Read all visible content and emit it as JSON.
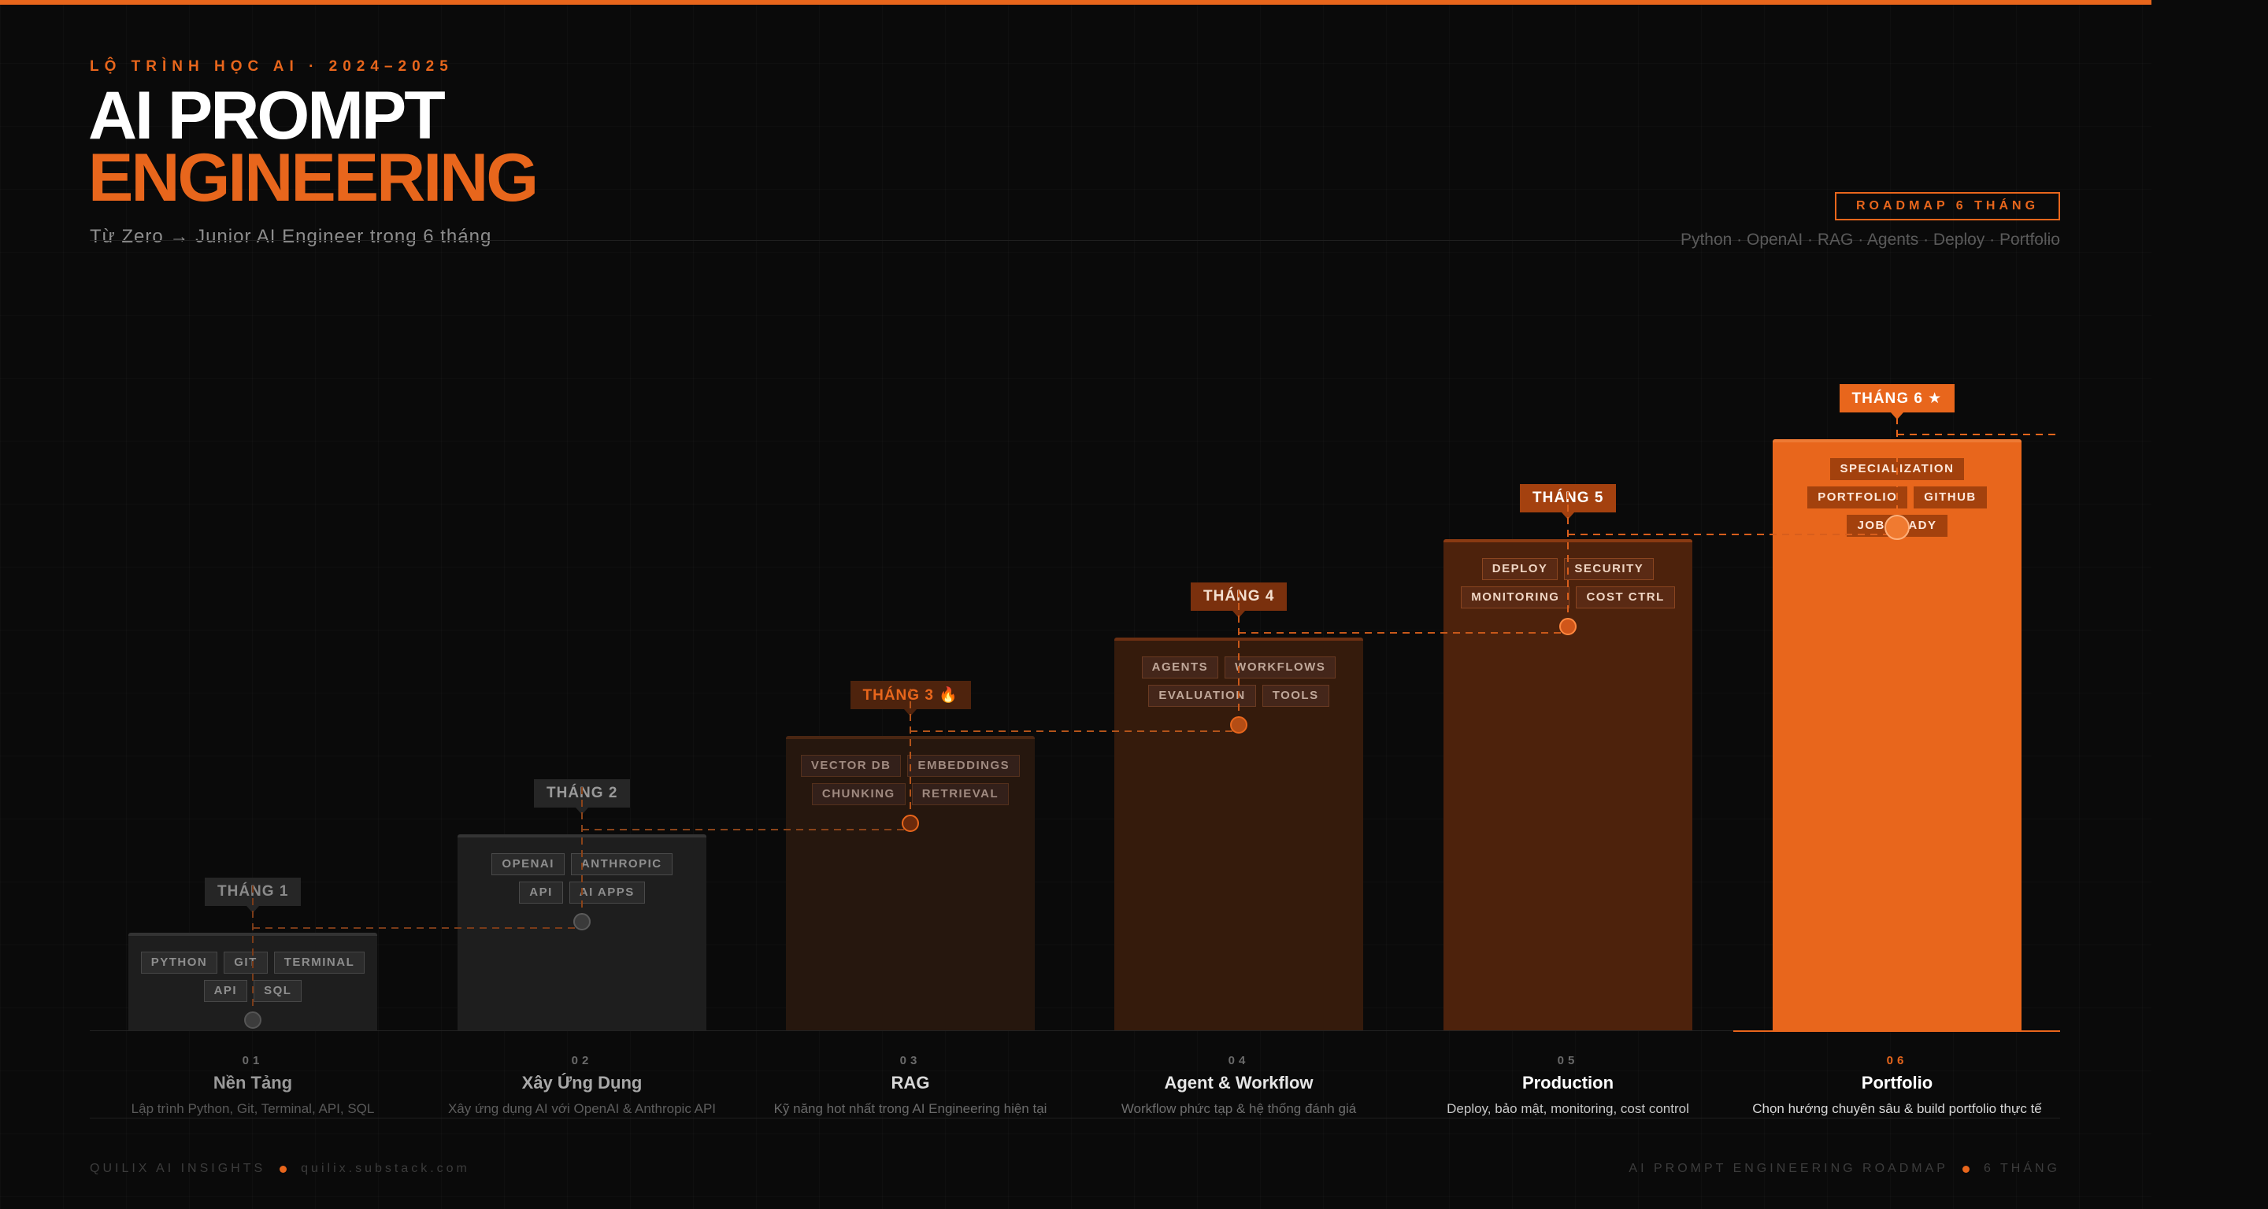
{
  "header": {
    "eyebrow": "LỘ TRÌNH HỌC AI · 2024–2025",
    "title_line1": "AI PROMPT",
    "title_line2": "ENGINEERING",
    "subtitle": "Từ Zero → Junior AI Engineer trong 6 tháng"
  },
  "badge": {
    "label": "ROADMAP 6 THÁNG",
    "topics": "Python · OpenAI · RAG · Agents · Deploy · Portfolio"
  },
  "colors": {
    "accent": "#e8661c",
    "background": "#0a0a0a"
  },
  "months": [
    {
      "number": "01",
      "pill": "THÁNG 1",
      "name": "Nền Tảng",
      "description": "Lập trình Python, Git, Terminal, API, SQL",
      "tags": [
        "PYTHON",
        "GIT",
        "TERMINAL",
        "API",
        "SQL"
      ]
    },
    {
      "number": "02",
      "pill": "THÁNG 2",
      "name": "Xây Ứng Dụng",
      "description": "Xây ứng dụng AI với OpenAI & Anthropic API",
      "tags": [
        "OPENAI",
        "ANTHROPIC",
        "API",
        "AI APPS"
      ]
    },
    {
      "number": "03",
      "pill": "THÁNG 3 🔥",
      "name": "RAG",
      "description": "Kỹ năng hot nhất trong AI Engineering hiện tại",
      "tags": [
        "VECTOR DB",
        "EMBEDDINGS",
        "CHUNKING",
        "RETRIEVAL"
      ]
    },
    {
      "number": "04",
      "pill": "THÁNG 4",
      "name": "Agent & Workflow",
      "description": "Workflow phức tạp & hệ thống đánh giá",
      "tags": [
        "AGENTS",
        "WORKFLOWS",
        "EVALUATION",
        "TOOLS"
      ]
    },
    {
      "number": "05",
      "pill": "THÁNG 5",
      "name": "Production",
      "description": "Deploy, bảo mật, monitoring, cost control",
      "tags": [
        "DEPLOY",
        "SECURITY",
        "MONITORING",
        "COST CTRL"
      ]
    },
    {
      "number": "06",
      "pill": "THÁNG 6 ★",
      "name": "Portfolio",
      "description": "Chọn hướng chuyên sâu & build portfolio thực tế",
      "tags": [
        "SPECIALIZATION",
        "PORTFOLIO",
        "GITHUB",
        "JOB READY"
      ]
    }
  ],
  "footer": {
    "brand": "QUILIX AI INSIGHTS",
    "site": "quilix.substack.com",
    "title": "AI PROMPT ENGINEERING ROADMAP",
    "duration": "6 THÁNG"
  }
}
